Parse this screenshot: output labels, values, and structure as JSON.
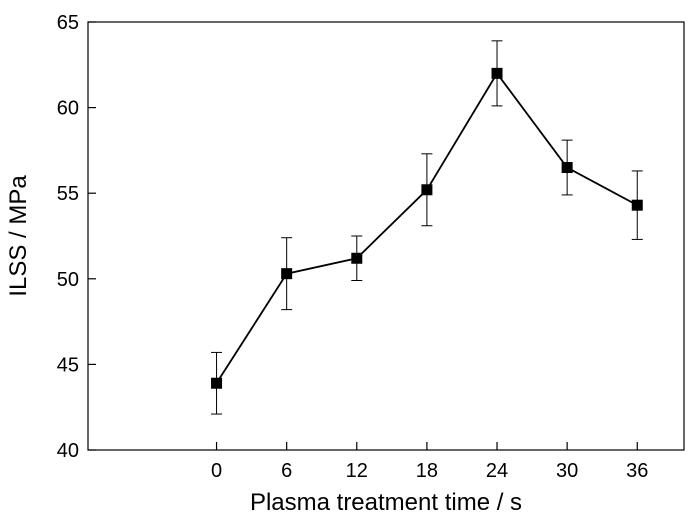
{
  "chart_data": {
    "type": "line",
    "title": "",
    "xlabel": "Plasma treatment time / s",
    "ylabel": "ILSS / MPa",
    "xlim": [
      -11,
      40
    ],
    "ylim": [
      40,
      65
    ],
    "x_ticks": [
      0,
      6,
      12,
      18,
      24,
      30,
      36
    ],
    "y_ticks": [
      40,
      45,
      50,
      55,
      60,
      65
    ],
    "grid": false,
    "legend": "none",
    "series": [
      {
        "x": [
          0,
          6,
          12,
          18,
          24,
          30,
          36
        ],
        "values": [
          43.9,
          50.3,
          51.2,
          55.2,
          62.0,
          56.5,
          54.3
        ],
        "error": [
          1.8,
          2.1,
          1.3,
          2.1,
          1.9,
          1.6,
          2.0
        ],
        "marker": "square",
        "color": "#000000"
      }
    ]
  }
}
